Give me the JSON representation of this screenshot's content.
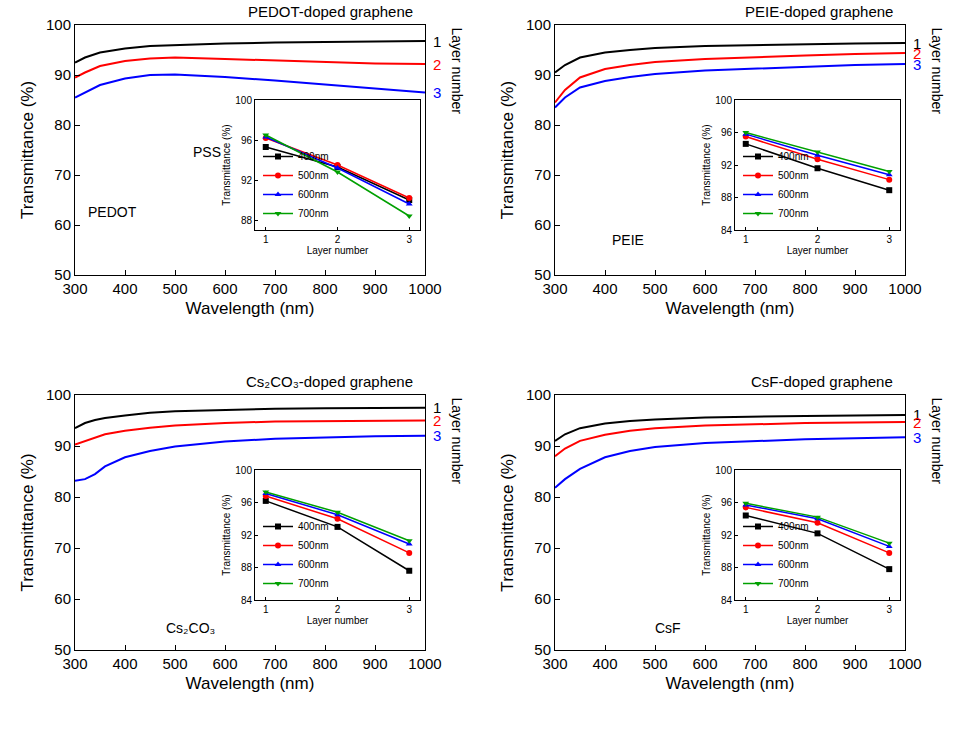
{
  "chart_data": [
    {
      "type": "line",
      "title": "PEDOT-doped graphene",
      "x_label": "Wavelength (nm)",
      "y_label": "Transmittance (%)",
      "x": [
        300,
        320,
        350,
        400,
        450,
        500,
        600,
        700,
        800,
        900,
        1000
      ],
      "series": [
        {
          "name": "1",
          "color": "#000000",
          "line_style": "solid",
          "values": [
            92.5,
            93.5,
            94.5,
            95.3,
            95.8,
            96.0,
            96.3,
            96.5,
            96.6,
            96.7,
            96.8
          ]
        },
        {
          "name": "2",
          "color": "#ff0000",
          "line_style": "solid",
          "values": [
            89.5,
            90.5,
            91.8,
            92.8,
            93.3,
            93.5,
            93.2,
            92.9,
            92.6,
            92.3,
            92.2
          ]
        },
        {
          "name": "3",
          "color": "#0000ff",
          "line_style": "solid",
          "values": [
            85.5,
            86.5,
            88.0,
            89.3,
            90.0,
            90.1,
            89.6,
            88.9,
            88.1,
            87.3,
            86.5
          ]
        }
      ],
      "xlim": [
        300,
        1000
      ],
      "xticks": [
        300,
        400,
        500,
        600,
        700,
        800,
        900,
        1000
      ],
      "ylim": [
        50,
        100
      ],
      "yticks": [
        50,
        60,
        70,
        80,
        90,
        100
      ],
      "grid": false,
      "annotations": [
        "Layer number",
        "PEDOT",
        "PSS"
      ]
    },
    {
      "type": "line",
      "x_label": "Layer number",
      "y_label": "Transmittance (%)",
      "x": [
        1,
        2,
        3
      ],
      "series": [
        {
          "name": "400nm",
          "color": "#000000",
          "marker": "square",
          "values": [
            95.3,
            93.3,
            90.0
          ]
        },
        {
          "name": "500nm",
          "color": "#ff0000",
          "marker": "circle",
          "values": [
            96.2,
            93.5,
            90.2
          ]
        },
        {
          "name": "600nm",
          "color": "#0000ff",
          "marker": "triangle-up",
          "values": [
            96.3,
            93.2,
            89.6
          ]
        },
        {
          "name": "700nm",
          "color": "#00a000",
          "marker": "triangle-down",
          "values": [
            96.5,
            92.8,
            88.4
          ]
        }
      ],
      "xlim": [
        0.85,
        3.15
      ],
      "xticks": [
        1,
        2,
        3
      ],
      "ylim": [
        87,
        100
      ],
      "yticks": [
        88,
        92,
        96,
        100
      ],
      "grid": false,
      "legend": "lower left"
    },
    {
      "type": "line",
      "title": "PEIE-doped graphene",
      "x_label": "Wavelength (nm)",
      "y_label": "Transmittance (%)",
      "x": [
        300,
        320,
        350,
        400,
        450,
        500,
        600,
        700,
        800,
        900,
        1000
      ],
      "series": [
        {
          "name": "1",
          "color": "#000000",
          "line_style": "solid",
          "values": [
            90.5,
            92.0,
            93.5,
            94.5,
            95.0,
            95.4,
            95.8,
            96.0,
            96.2,
            96.3,
            96.4
          ]
        },
        {
          "name": "2",
          "color": "#ff0000",
          "line_style": "solid",
          "values": [
            84.5,
            87.0,
            89.5,
            91.2,
            92.0,
            92.6,
            93.2,
            93.6,
            93.9,
            94.2,
            94.4
          ]
        },
        {
          "name": "3",
          "color": "#0000ff",
          "line_style": "solid",
          "values": [
            83.5,
            85.5,
            87.5,
            88.8,
            89.6,
            90.2,
            90.9,
            91.3,
            91.7,
            92.0,
            92.2
          ]
        }
      ],
      "xlim": [
        300,
        1000
      ],
      "xticks": [
        300,
        400,
        500,
        600,
        700,
        800,
        900,
        1000
      ],
      "ylim": [
        50,
        100
      ],
      "yticks": [
        50,
        60,
        70,
        80,
        90,
        100
      ],
      "grid": false,
      "annotations": [
        "Layer number",
        "PEIE"
      ]
    },
    {
      "type": "line",
      "x_label": "Layer number",
      "y_label": "Transmittance (%)",
      "x": [
        1,
        2,
        3
      ],
      "series": [
        {
          "name": "400nm",
          "color": "#000000",
          "marker": "square",
          "values": [
            94.6,
            91.6,
            88.9
          ]
        },
        {
          "name": "500nm",
          "color": "#ff0000",
          "marker": "circle",
          "values": [
            95.5,
            92.7,
            90.2
          ]
        },
        {
          "name": "600nm",
          "color": "#0000ff",
          "marker": "triangle-up",
          "values": [
            95.8,
            93.2,
            90.8
          ]
        },
        {
          "name": "700nm",
          "color": "#00a000",
          "marker": "triangle-down",
          "values": [
            96.0,
            93.6,
            91.2
          ]
        }
      ],
      "xlim": [
        0.85,
        3.15
      ],
      "xticks": [
        1,
        2,
        3
      ],
      "ylim": [
        84,
        100
      ],
      "yticks": [
        84,
        88,
        92,
        96,
        100
      ],
      "grid": false,
      "legend": "lower left"
    },
    {
      "type": "line",
      "title": "Cs₂CO₃-doped graphene",
      "x_label": "Wavelength (nm)",
      "y_label": "Transmittance (%)",
      "x": [
        300,
        320,
        340,
        360,
        400,
        450,
        500,
        600,
        700,
        800,
        900,
        1000
      ],
      "series": [
        {
          "name": "1",
          "color": "#000000",
          "line_style": "solid",
          "values": [
            93.5,
            94.5,
            95.1,
            95.5,
            96.0,
            96.5,
            96.8,
            97.1,
            97.3,
            97.4,
            97.5,
            97.5
          ]
        },
        {
          "name": "2",
          "color": "#ff0000",
          "line_style": "solid",
          "values": [
            90.3,
            91.0,
            91.7,
            92.3,
            93.0,
            93.6,
            94.0,
            94.5,
            94.8,
            94.9,
            95.0,
            95.0
          ]
        },
        {
          "name": "3",
          "color": "#0000ff",
          "line_style": "solid",
          "values": [
            83.2,
            83.5,
            84.5,
            86.0,
            87.8,
            89.0,
            89.9,
            90.9,
            91.4,
            91.7,
            91.9,
            92.0
          ]
        }
      ],
      "xlim": [
        300,
        1000
      ],
      "xticks": [
        300,
        400,
        500,
        600,
        700,
        800,
        900,
        1000
      ],
      "ylim": [
        50,
        100
      ],
      "yticks": [
        50,
        60,
        70,
        80,
        90,
        100
      ],
      "grid": false,
      "annotations": [
        "Layer number",
        "Cs₂CO₃"
      ]
    },
    {
      "type": "line",
      "x_label": "Layer number",
      "y_label": "Transmittance (%)",
      "x": [
        1,
        2,
        3
      ],
      "series": [
        {
          "name": "400nm",
          "color": "#000000",
          "marker": "square",
          "values": [
            96.2,
            93.0,
            87.6
          ]
        },
        {
          "name": "500nm",
          "color": "#ff0000",
          "marker": "circle",
          "values": [
            96.8,
            94.0,
            89.8
          ]
        },
        {
          "name": "600nm",
          "color": "#0000ff",
          "marker": "triangle-up",
          "values": [
            97.1,
            94.5,
            90.9
          ]
        },
        {
          "name": "700nm",
          "color": "#00a000",
          "marker": "triangle-down",
          "values": [
            97.3,
            94.8,
            91.3
          ]
        }
      ],
      "xlim": [
        0.85,
        3.15
      ],
      "xticks": [
        1,
        2,
        3
      ],
      "ylim": [
        84,
        100
      ],
      "yticks": [
        84,
        88,
        92,
        96,
        100
      ],
      "grid": false,
      "legend": "lower left"
    },
    {
      "type": "line",
      "title": "CsF-doped graphene",
      "x_label": "Wavelength (nm)",
      "y_label": "Transmittance (%)",
      "x": [
        300,
        320,
        350,
        400,
        450,
        500,
        600,
        700,
        800,
        900,
        1000
      ],
      "series": [
        {
          "name": "1",
          "color": "#000000",
          "line_style": "solid",
          "values": [
            91.0,
            92.3,
            93.5,
            94.4,
            94.9,
            95.2,
            95.6,
            95.8,
            95.9,
            96.0,
            96.1
          ]
        },
        {
          "name": "2",
          "color": "#ff0000",
          "line_style": "solid",
          "values": [
            88.0,
            89.5,
            91.0,
            92.2,
            93.0,
            93.5,
            94.0,
            94.3,
            94.5,
            94.6,
            94.7
          ]
        },
        {
          "name": "3",
          "color": "#0000ff",
          "line_style": "solid",
          "values": [
            81.8,
            83.5,
            85.5,
            87.8,
            89.0,
            89.8,
            90.6,
            91.0,
            91.3,
            91.5,
            91.7
          ]
        }
      ],
      "xlim": [
        300,
        1000
      ],
      "xticks": [
        300,
        400,
        500,
        600,
        700,
        800,
        900,
        1000
      ],
      "ylim": [
        50,
        100
      ],
      "yticks": [
        50,
        60,
        70,
        80,
        90,
        100
      ],
      "grid": false,
      "annotations": [
        "Layer number",
        "CsF"
      ]
    },
    {
      "type": "line",
      "x_label": "Layer number",
      "y_label": "Transmittance (%)",
      "x": [
        1,
        2,
        3
      ],
      "series": [
        {
          "name": "400nm",
          "color": "#000000",
          "marker": "square",
          "values": [
            94.4,
            92.2,
            87.8
          ]
        },
        {
          "name": "500nm",
          "color": "#ff0000",
          "marker": "circle",
          "values": [
            95.4,
            93.5,
            89.8
          ]
        },
        {
          "name": "600nm",
          "color": "#0000ff",
          "marker": "triangle-up",
          "values": [
            95.7,
            94.0,
            90.6
          ]
        },
        {
          "name": "700nm",
          "color": "#00a000",
          "marker": "triangle-down",
          "values": [
            95.9,
            94.2,
            91.0
          ]
        }
      ],
      "xlim": [
        0.85,
        3.15
      ],
      "xticks": [
        1,
        2,
        3
      ],
      "ylim": [
        84,
        100
      ],
      "yticks": [
        84,
        88,
        92,
        96,
        100
      ],
      "grid": false,
      "legend": "lower left"
    }
  ]
}
